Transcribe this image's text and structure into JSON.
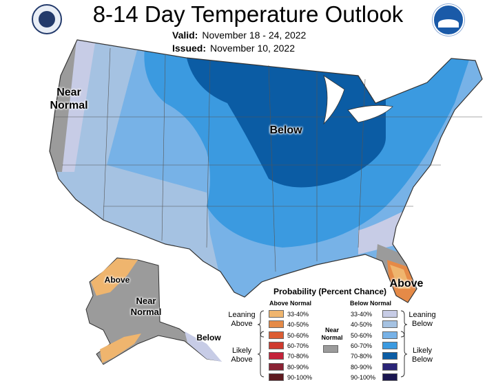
{
  "title": "8-14 Day Temperature Outlook",
  "valid_label": "Valid:",
  "valid_value": "November 18 - 24, 2022",
  "issued_label": "Issued:",
  "issued_value": "November 10, 2022",
  "logos": {
    "left": "doc-seal-icon",
    "right": "noaa-logo-icon"
  },
  "map_labels": {
    "west": "Near Normal",
    "center": "Below",
    "florida": "Above",
    "alaska_above": "Above",
    "alaska_normal": "Near Normal",
    "alaska_below": "Below"
  },
  "legend": {
    "title": "Probability (Percent Chance)",
    "above_header": "Above Normal",
    "below_header": "Below Normal",
    "near_normal": "Near Normal",
    "leaning_above": "Leaning Above",
    "likely_above": "Likely Above",
    "leaning_below": "Leaning Below",
    "likely_below": "Likely Below",
    "ranges": [
      "33-40%",
      "40-50%",
      "50-60%",
      "60-70%",
      "70-80%",
      "80-90%",
      "90-100%"
    ],
    "above_colors": [
      "#efb56e",
      "#e58a47",
      "#dc5d33",
      "#cf3a2e",
      "#c4233a",
      "#8a2234",
      "#5e1a1f"
    ],
    "below_colors": [
      "#c7cce6",
      "#a5c2e2",
      "#77b2e7",
      "#3b9ae0",
      "#0b5ca4",
      "#2a2477",
      "#1a1650"
    ],
    "normal_color": "#9b9b9b"
  }
}
